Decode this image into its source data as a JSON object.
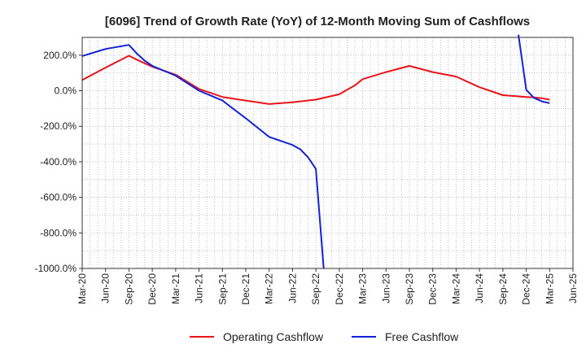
{
  "chart_data": {
    "type": "line",
    "title": "[6096]  Trend of Growth Rate (YoY) of 12-Month Moving Sum of Cashflows",
    "xlabel": "",
    "ylabel": "",
    "ylim": [
      -1000,
      300
    ],
    "grid": true,
    "legend_position": "bottom",
    "y_ticks": [
      200,
      0,
      -200,
      -400,
      -600,
      -800,
      -1000
    ],
    "y_tick_labels": [
      "200.0%",
      "0.0%",
      "-200.0%",
      "-400.0%",
      "-600.0%",
      "-800.0%",
      "-1000.0%"
    ],
    "x_ticks": [
      "2020-03",
      "2020-06",
      "2020-09",
      "2020-12",
      "2021-03",
      "2021-06",
      "2021-09",
      "2021-12",
      "2022-03",
      "2022-06",
      "2022-09",
      "2022-12",
      "2023-03",
      "2023-06",
      "2023-09",
      "2023-12",
      "2024-03",
      "2024-06",
      "2024-09",
      "2024-12",
      "2025-03",
      "2025-06"
    ],
    "x_tick_labels": [
      "Mar-20",
      "Jun-20",
      "Sep-20",
      "Dec-20",
      "Mar-21",
      "Jun-21",
      "Sep-21",
      "Dec-21",
      "Mar-22",
      "Jun-22",
      "Sep-22",
      "Dec-22",
      "Mar-23",
      "Jun-23",
      "Sep-23",
      "Dec-23",
      "Mar-24",
      "Jun-24",
      "Sep-24",
      "Dec-24",
      "Mar-25",
      "Jun-25"
    ],
    "x_range": [
      "2020-03",
      "2025-06"
    ],
    "series": [
      {
        "name": "Operating Cashflow",
        "color": "#e8141b",
        "points": [
          [
            "2020-03",
            60
          ],
          [
            "2020-06",
            130
          ],
          [
            "2020-09",
            197
          ],
          [
            "2020-10",
            175
          ],
          [
            "2020-11",
            155
          ],
          [
            "2020-12",
            135
          ],
          [
            "2021-03",
            90
          ],
          [
            "2021-06",
            10
          ],
          [
            "2021-09",
            -35
          ],
          [
            "2021-12",
            -55
          ],
          [
            "2022-03",
            -75
          ],
          [
            "2022-06",
            -65
          ],
          [
            "2022-09",
            -50
          ],
          [
            "2022-12",
            -20
          ],
          [
            "2023-01",
            5
          ],
          [
            "2023-02",
            30
          ],
          [
            "2023-03",
            65
          ],
          [
            "2023-06",
            105
          ],
          [
            "2023-09",
            140
          ],
          [
            "2023-12",
            105
          ],
          [
            "2024-03",
            80
          ],
          [
            "2024-06",
            20
          ],
          [
            "2024-09",
            -25
          ],
          [
            "2024-12",
            -35
          ],
          [
            "2025-01",
            -38
          ],
          [
            "2025-02",
            -42
          ],
          [
            "2025-03",
            -50
          ]
        ]
      },
      {
        "name": "Free Cashflow",
        "color": "#1422d6",
        "points": [
          [
            "2020-03",
            195
          ],
          [
            "2020-06",
            235
          ],
          [
            "2020-09",
            258
          ],
          [
            "2020-10",
            210
          ],
          [
            "2020-11",
            170
          ],
          [
            "2020-12",
            140
          ],
          [
            "2021-03",
            85
          ],
          [
            "2021-06",
            0
          ],
          [
            "2021-09",
            -55
          ],
          [
            "2021-12",
            -155
          ],
          [
            "2022-03",
            -260
          ],
          [
            "2022-06",
            -305
          ],
          [
            "2022-07",
            -330
          ],
          [
            "2022-08",
            -375
          ],
          [
            "2022-09",
            -440
          ],
          [
            "2022-10",
            -1000
          ],
          null,
          [
            "2024-11",
            315
          ],
          [
            "2024-12",
            5
          ],
          [
            "2025-01",
            -40
          ],
          [
            "2025-02",
            -60
          ],
          [
            "2025-03",
            -70
          ]
        ]
      }
    ]
  }
}
